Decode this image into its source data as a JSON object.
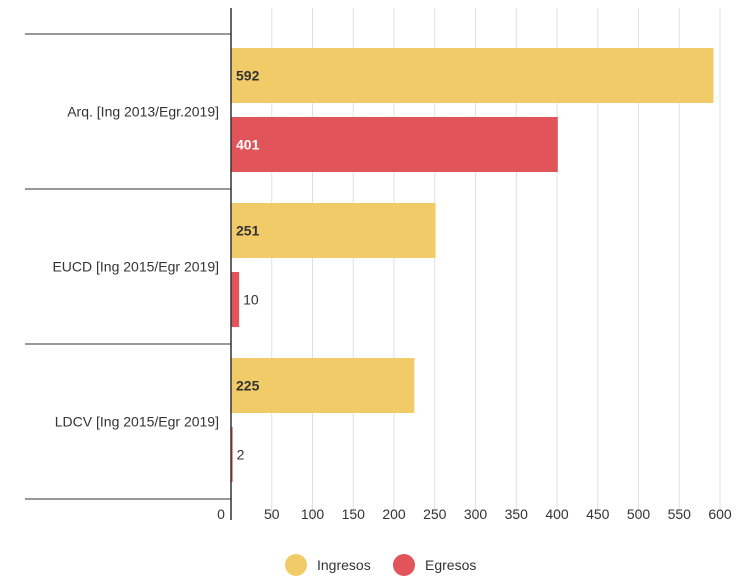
{
  "chart_data": {
    "type": "bar",
    "orientation": "horizontal",
    "title": "",
    "xlabel": "",
    "ylabel": "",
    "categories": [
      "Arq. [Ing 2013/Egr.2019]",
      "EUCD [Ing 2015/Egr 2019]",
      "LDCV [Ing 2015/Egr 2019]"
    ],
    "series": [
      {
        "name": "Ingresos",
        "color": "#f1cb67",
        "values": [
          592,
          251,
          225
        ],
        "label_colors": [
          "#333333",
          "#333333",
          "#333333"
        ]
      },
      {
        "name": "Egresos",
        "color": "#e0545a",
        "values": [
          401,
          10,
          2
        ],
        "label_colors": [
          "#ffffff",
          "#333333",
          "#333333"
        ]
      }
    ],
    "xlim": [
      0,
      600
    ],
    "xticks": [
      0,
      50,
      100,
      150,
      200,
      250,
      300,
      350,
      400,
      450,
      500,
      550,
      600
    ],
    "grid": true,
    "legend_position": "bottom-center"
  }
}
